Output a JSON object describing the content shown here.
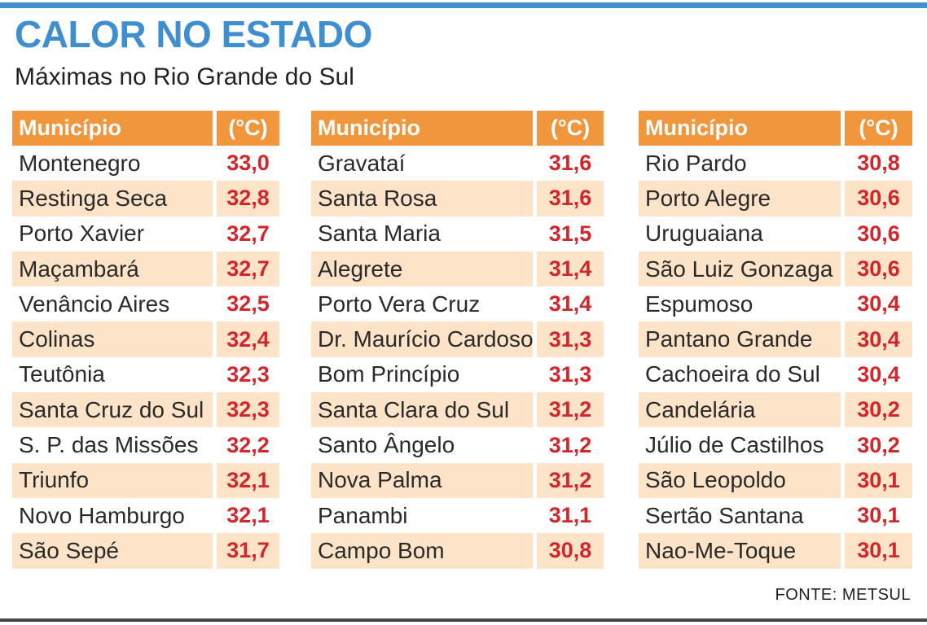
{
  "title": "CALOR NO ESTADO",
  "subtitle": "Máximas no Rio Grande do Sul",
  "header": {
    "municipio": "Município",
    "unit": "(°C)"
  },
  "source": "FONTE: METSUL",
  "colors": {
    "title": "#3f8ecf",
    "header_bg": "#f0963c",
    "row_shade": "#fde3c7",
    "temperature": "#d2262b"
  },
  "columns": [
    {
      "rows": [
        {
          "name": "Montenegro",
          "temp": "33,0"
        },
        {
          "name": "Restinga Seca",
          "temp": "32,8"
        },
        {
          "name": "Porto Xavier",
          "temp": "32,7"
        },
        {
          "name": "Maçambará",
          "temp": "32,7"
        },
        {
          "name": "Venâncio Aires",
          "temp": "32,5"
        },
        {
          "name": "Colinas",
          "temp": "32,4"
        },
        {
          "name": "Teutônia",
          "temp": "32,3"
        },
        {
          "name": "Santa Cruz do Sul",
          "temp": "32,3"
        },
        {
          "name": "S. P. das Missões",
          "temp": "32,2"
        },
        {
          "name": "Triunfo",
          "temp": "32,1"
        },
        {
          "name": "Novo Hamburgo",
          "temp": "32,1"
        },
        {
          "name": "São Sepé",
          "temp": "31,7"
        }
      ]
    },
    {
      "rows": [
        {
          "name": "Gravataí",
          "temp": "31,6"
        },
        {
          "name": "Santa Rosa",
          "temp": "31,6"
        },
        {
          "name": "Santa Maria",
          "temp": "31,5"
        },
        {
          "name": "Alegrete",
          "temp": "31,4"
        },
        {
          "name": "Porto Vera Cruz",
          "temp": "31,4"
        },
        {
          "name": "Dr. Maurício Cardoso",
          "temp": "31,3"
        },
        {
          "name": "Bom Princípio",
          "temp": "31,3"
        },
        {
          "name": "Santa Clara do Sul",
          "temp": "31,2"
        },
        {
          "name": "Santo Ângelo",
          "temp": "31,2"
        },
        {
          "name": "Nova Palma",
          "temp": "31,2"
        },
        {
          "name": "Panambi",
          "temp": "31,1"
        },
        {
          "name": "Campo Bom",
          "temp": "30,8"
        }
      ]
    },
    {
      "rows": [
        {
          "name": "Rio Pardo",
          "temp": "30,8"
        },
        {
          "name": "Porto Alegre",
          "temp": "30,6"
        },
        {
          "name": "Uruguaiana",
          "temp": "30,6"
        },
        {
          "name": "São Luiz Gonzaga",
          "temp": "30,6"
        },
        {
          "name": "Espumoso",
          "temp": "30,4"
        },
        {
          "name": "Pantano Grande",
          "temp": "30,4"
        },
        {
          "name": "Cachoeira do Sul",
          "temp": "30,4"
        },
        {
          "name": "Candelária",
          "temp": "30,2"
        },
        {
          "name": "Júlio de Castilhos",
          "temp": "30,2"
        },
        {
          "name": "São Leopoldo",
          "temp": "30,1"
        },
        {
          "name": "Sertão Santana",
          "temp": "30,1"
        },
        {
          "name": "Nao-Me-Toque",
          "temp": "30,1"
        }
      ]
    }
  ]
}
